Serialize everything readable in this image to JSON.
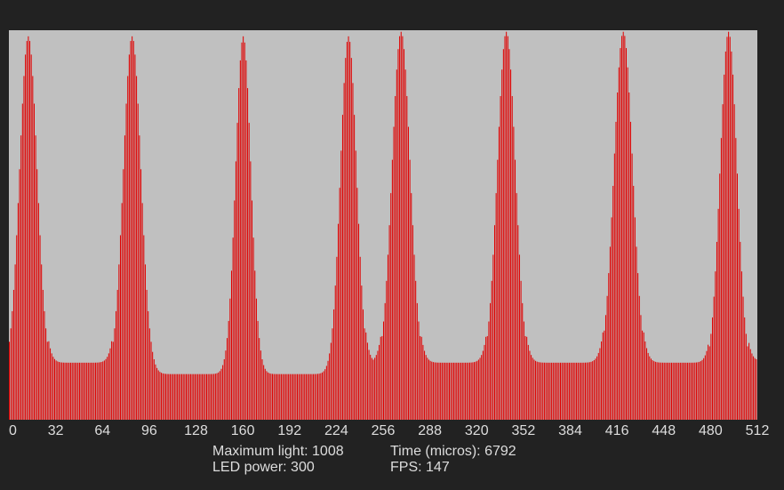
{
  "colors": {
    "background": "#222222",
    "plot_background": "#c0c0c0",
    "bar": "#e00000",
    "text": "#dddddd"
  },
  "stats": {
    "max_light_label": "Maximum light:",
    "max_light_value": "1008",
    "led_power_label": "LED power:",
    "led_power_value": "300",
    "time_label": "Time (micros):",
    "time_value": "6792",
    "fps_label": "FPS:",
    "fps_value": "147"
  },
  "chart_data": {
    "type": "bar",
    "title": "",
    "xlabel": "",
    "ylabel": "",
    "xlim": [
      0,
      512
    ],
    "ylim": [
      0,
      1024
    ],
    "x_ticks": [
      0,
      32,
      64,
      96,
      128,
      160,
      192,
      224,
      256,
      288,
      320,
      352,
      384,
      416,
      448,
      480,
      512
    ],
    "x_tick_labels": [
      "0",
      "32",
      "64",
      "96",
      "128",
      "160",
      "192",
      "224",
      "256",
      "288",
      "320",
      "352",
      "384",
      "416",
      "448",
      "480",
      "512"
    ],
    "grid": false,
    "legend": "none",
    "baseline": 120,
    "peaks": [
      {
        "center": 13,
        "max": 1008,
        "width": 6.0
      },
      {
        "center": 84,
        "max": 1008,
        "width": 6.0
      },
      {
        "center": 160,
        "max": 1008,
        "width": 5.2
      },
      {
        "center": 232,
        "max": 1008,
        "width": 5.5
      },
      {
        "center": 268,
        "max": 1020,
        "width": 6.2
      },
      {
        "center": 340,
        "max": 1020,
        "width": 6.2
      },
      {
        "center": 420,
        "max": 1020,
        "width": 6.4
      },
      {
        "center": 492,
        "max": 1020,
        "width": 5.8
      }
    ],
    "valleys": [
      {
        "from": 27,
        "to": 70,
        "level": 150
      },
      {
        "from": 98,
        "to": 146,
        "level": 120
      },
      {
        "from": 174,
        "to": 218,
        "level": 120
      },
      {
        "from": 244,
        "to": 254,
        "level": 150
      },
      {
        "from": 282,
        "to": 326,
        "level": 150
      },
      {
        "from": 354,
        "to": 406,
        "level": 150
      },
      {
        "from": 434,
        "to": 478,
        "level": 150
      },
      {
        "from": 506,
        "to": 512,
        "level": 155
      }
    ]
  }
}
